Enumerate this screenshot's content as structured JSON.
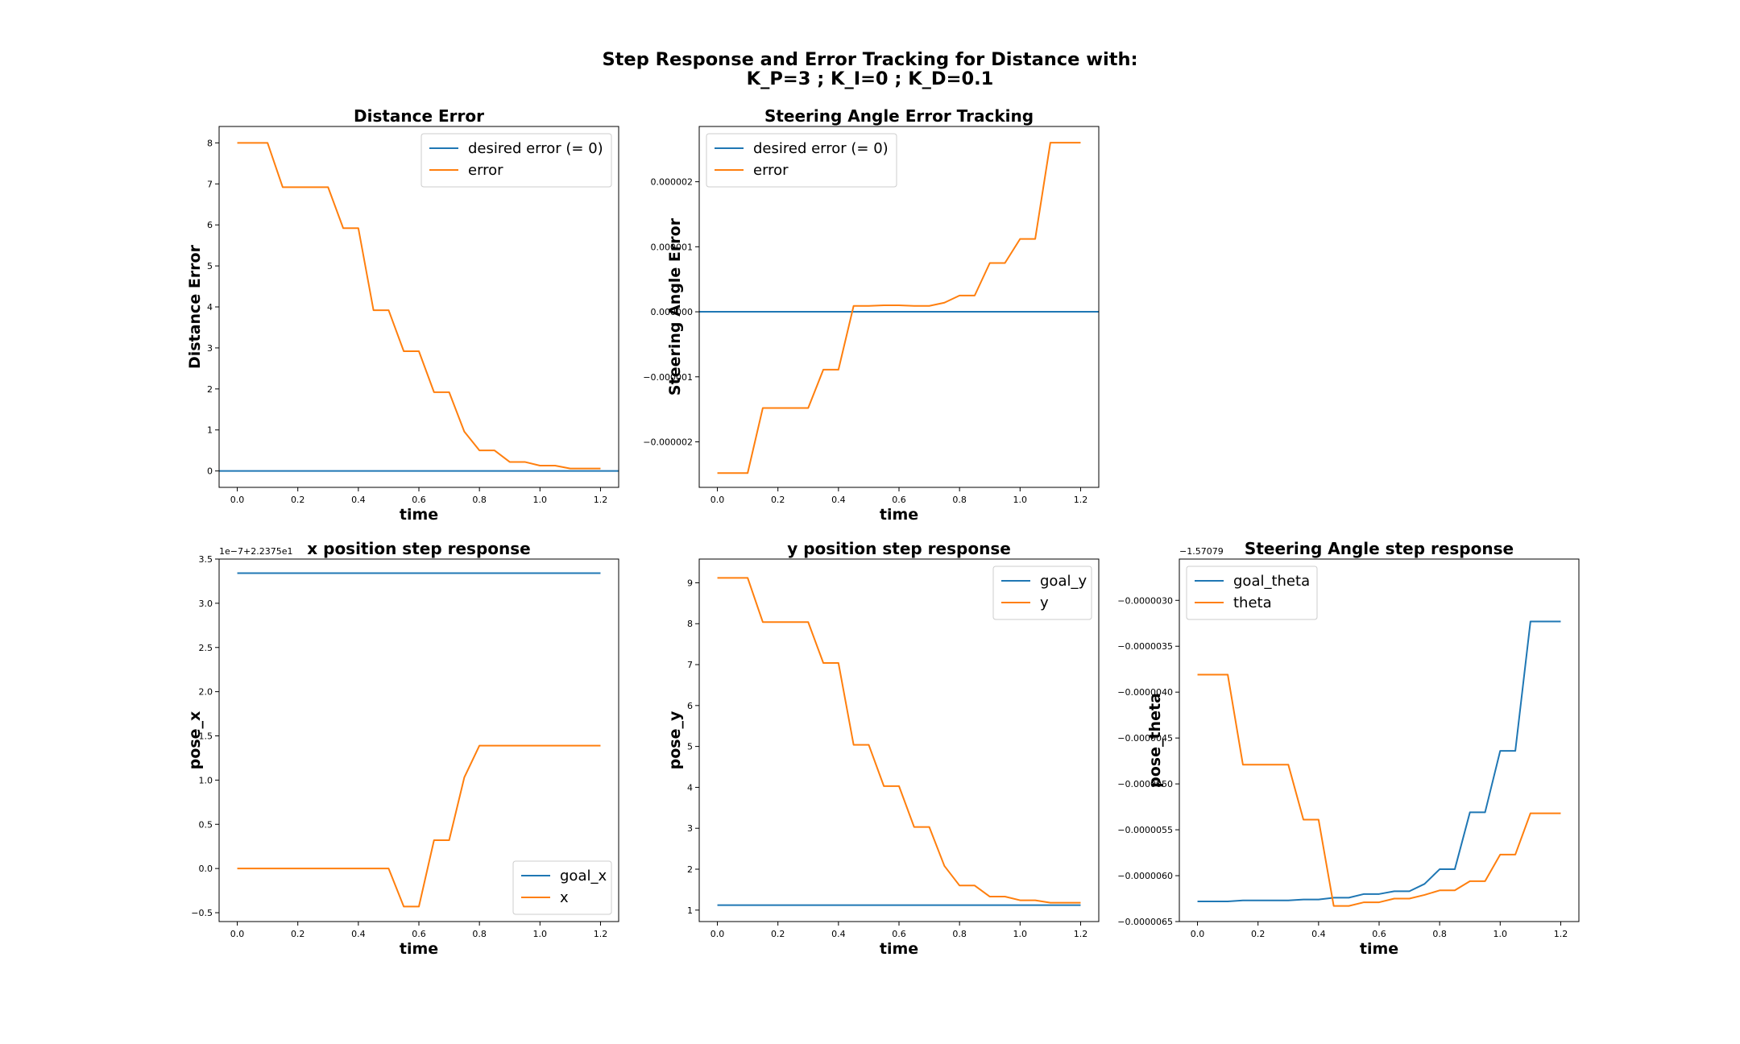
{
  "figure": {
    "suptitle_line1": "Step Response and Error Tracking for Distance with:",
    "suptitle_line2": "K_P=3 ; K_I=0 ; K_D=0.1"
  },
  "colors": {
    "blue": "#1f77b4",
    "orange": "#ff7f0e"
  },
  "chart_data": [
    {
      "id": "distance_error",
      "type": "line",
      "title": "Distance Error",
      "xlabel": "time",
      "ylabel": "Distance Error",
      "xlim": [
        -0.06,
        1.26
      ],
      "ylim": [
        -0.4,
        8.4
      ],
      "xticks": [
        0.0,
        0.2,
        0.4,
        0.6,
        0.8,
        1.0,
        1.2
      ],
      "xtick_labels": [
        "0.0",
        "0.2",
        "0.4",
        "0.6",
        "0.8",
        "1.0",
        "1.2"
      ],
      "yticks": [
        0,
        1,
        2,
        3,
        4,
        5,
        6,
        7,
        8
      ],
      "ytick_labels": [
        "0",
        "1",
        "2",
        "3",
        "4",
        "5",
        "6",
        "7",
        "8"
      ],
      "offset_text": "",
      "legend": "top-right",
      "series": [
        {
          "name": "desired error (= 0)",
          "color": "#1f77b4",
          "x": [
            -0.06,
            1.26
          ],
          "y": [
            0,
            0
          ]
        },
        {
          "name": "error",
          "color": "#ff7f0e",
          "x": [
            0.0,
            0.05,
            0.1,
            0.15,
            0.2,
            0.25,
            0.3,
            0.35,
            0.4,
            0.45,
            0.5,
            0.55,
            0.6,
            0.65,
            0.7,
            0.75,
            0.8,
            0.85,
            0.9,
            0.95,
            1.0,
            1.05,
            1.1,
            1.15,
            1.2
          ],
          "y": [
            8.0,
            8.0,
            8.0,
            6.92,
            6.92,
            6.92,
            6.92,
            5.92,
            5.92,
            3.92,
            3.92,
            2.92,
            2.92,
            1.92,
            1.92,
            0.96,
            0.5,
            0.5,
            0.22,
            0.22,
            0.13,
            0.13,
            0.06,
            0.06,
            0.06
          ]
        }
      ]
    },
    {
      "id": "steering_error",
      "type": "line",
      "title": "Steering Angle Error Tracking",
      "xlabel": "time",
      "ylabel": "Steering Angle Error",
      "xlim": [
        -0.06,
        1.26
      ],
      "ylim": [
        -2.7,
        2.85
      ],
      "xticks": [
        0.0,
        0.2,
        0.4,
        0.6,
        0.8,
        1.0,
        1.2
      ],
      "xtick_labels": [
        "0.0",
        "0.2",
        "0.4",
        "0.6",
        "0.8",
        "1.0",
        "1.2"
      ],
      "yticks": [
        -2,
        -1,
        0,
        1,
        2
      ],
      "ytick_labels": [
        "−0.000002",
        "−0.000001",
        "0.000000",
        "0.000001",
        "0.000002"
      ],
      "offset_text": "",
      "legend": "top-left",
      "series": [
        {
          "name": "desired error (= 0)",
          "color": "#1f77b4",
          "x": [
            -0.06,
            1.26
          ],
          "y": [
            0,
            0
          ]
        },
        {
          "name": "error",
          "color": "#ff7f0e",
          "x": [
            0.0,
            0.05,
            0.1,
            0.15,
            0.2,
            0.25,
            0.3,
            0.35,
            0.4,
            0.45,
            0.5,
            0.55,
            0.6,
            0.65,
            0.7,
            0.75,
            0.8,
            0.85,
            0.9,
            0.95,
            1.0,
            1.05,
            1.1,
            1.15,
            1.2
          ],
          "y": [
            -2.48,
            -2.48,
            -2.48,
            -1.48,
            -1.48,
            -1.48,
            -1.48,
            -0.89,
            -0.89,
            0.09,
            0.09,
            0.1,
            0.1,
            0.09,
            0.09,
            0.14,
            0.25,
            0.25,
            0.75,
            0.75,
            1.12,
            1.12,
            2.6,
            2.6,
            2.6
          ]
        }
      ]
    },
    {
      "id": "x_step",
      "type": "line",
      "title": "x position step response",
      "xlabel": "time",
      "ylabel": "pose_x",
      "xlim": [
        -0.06,
        1.26
      ],
      "ylim": [
        -0.6,
        3.5
      ],
      "xticks": [
        0.0,
        0.2,
        0.4,
        0.6,
        0.8,
        1.0,
        1.2
      ],
      "xtick_labels": [
        "0.0",
        "0.2",
        "0.4",
        "0.6",
        "0.8",
        "1.0",
        "1.2"
      ],
      "yticks": [
        -0.5,
        0.0,
        0.5,
        1.0,
        1.5,
        2.0,
        2.5,
        3.0,
        3.5
      ],
      "ytick_labels": [
        "−0.5",
        "0.0",
        "0.5",
        "1.0",
        "1.5",
        "2.0",
        "2.5",
        "3.0",
        "3.5"
      ],
      "offset_text": "1e−7+2.2375e1",
      "legend": "bottom-right",
      "series": [
        {
          "name": "goal_x",
          "color": "#1f77b4",
          "x": [
            0.0,
            1.2
          ],
          "y": [
            3.34,
            3.34
          ]
        },
        {
          "name": "x",
          "color": "#ff7f0e",
          "x": [
            0.0,
            0.05,
            0.1,
            0.15,
            0.2,
            0.25,
            0.3,
            0.35,
            0.4,
            0.45,
            0.5,
            0.55,
            0.6,
            0.65,
            0.7,
            0.75,
            0.8,
            0.85,
            0.9,
            0.95,
            1.0,
            1.05,
            1.1,
            1.15,
            1.2
          ],
          "y": [
            0.0,
            0.0,
            0.0,
            0.0,
            0.0,
            0.0,
            0.0,
            0.0,
            0.0,
            0.0,
            0.0,
            -0.43,
            -0.43,
            0.32,
            0.32,
            1.03,
            1.39,
            1.39,
            1.39,
            1.39,
            1.39,
            1.39,
            1.39,
            1.39,
            1.39
          ]
        }
      ]
    },
    {
      "id": "y_step",
      "type": "line",
      "title": "y position step response",
      "xlabel": "time",
      "ylabel": "pose_y",
      "xlim": [
        -0.06,
        1.26
      ],
      "ylim": [
        0.72,
        9.58
      ],
      "xticks": [
        0.0,
        0.2,
        0.4,
        0.6,
        0.8,
        1.0,
        1.2
      ],
      "xtick_labels": [
        "0.0",
        "0.2",
        "0.4",
        "0.6",
        "0.8",
        "1.0",
        "1.2"
      ],
      "yticks": [
        1,
        2,
        3,
        4,
        5,
        6,
        7,
        8,
        9
      ],
      "ytick_labels": [
        "1",
        "2",
        "3",
        "4",
        "5",
        "6",
        "7",
        "8",
        "9"
      ],
      "offset_text": "",
      "legend": "top-right",
      "series": [
        {
          "name": "goal_y",
          "color": "#1f77b4",
          "x": [
            0.0,
            1.2
          ],
          "y": [
            1.12,
            1.12
          ]
        },
        {
          "name": "y",
          "color": "#ff7f0e",
          "x": [
            0.0,
            0.05,
            0.1,
            0.15,
            0.2,
            0.25,
            0.3,
            0.35,
            0.4,
            0.45,
            0.5,
            0.55,
            0.6,
            0.65,
            0.7,
            0.75,
            0.8,
            0.85,
            0.9,
            0.95,
            1.0,
            1.05,
            1.1,
            1.15,
            1.2
          ],
          "y": [
            9.12,
            9.12,
            9.12,
            8.04,
            8.04,
            8.04,
            8.04,
            7.04,
            7.04,
            5.04,
            5.04,
            4.03,
            4.03,
            3.03,
            3.03,
            2.08,
            1.6,
            1.6,
            1.33,
            1.33,
            1.24,
            1.24,
            1.18,
            1.18,
            1.18
          ]
        }
      ]
    },
    {
      "id": "theta_step",
      "type": "line",
      "title": "Steering Angle step response",
      "xlabel": "time",
      "ylabel": "pose_theta",
      "xlim": [
        -0.06,
        1.26
      ],
      "ylim": [
        -6.5,
        -2.55
      ],
      "xticks": [
        0.0,
        0.2,
        0.4,
        0.6,
        0.8,
        1.0,
        1.2
      ],
      "xtick_labels": [
        "0.0",
        "0.2",
        "0.4",
        "0.6",
        "0.8",
        "1.0",
        "1.2"
      ],
      "yticks": [
        -6.5,
        -6.0,
        -5.5,
        -5.0,
        -4.5,
        -4.0,
        -3.5,
        -3.0
      ],
      "ytick_labels": [
        "−0.0000065",
        "−0.0000060",
        "−0.0000055",
        "−0.0000050",
        "−0.0000045",
        "−0.0000040",
        "−0.0000035",
        "−0.0000030"
      ],
      "offset_text": "−1.57079",
      "legend": "top-left",
      "series": [
        {
          "name": "goal_theta",
          "color": "#1f77b4",
          "x": [
            0.0,
            0.05,
            0.1,
            0.15,
            0.2,
            0.25,
            0.3,
            0.35,
            0.4,
            0.45,
            0.5,
            0.55,
            0.6,
            0.65,
            0.7,
            0.75,
            0.8,
            0.85,
            0.9,
            0.95,
            1.0,
            1.05,
            1.1,
            1.15,
            1.2
          ],
          "y": [
            -6.28,
            -6.28,
            -6.28,
            -6.27,
            -6.27,
            -6.27,
            -6.27,
            -6.26,
            -6.26,
            -6.24,
            -6.24,
            -6.2,
            -6.2,
            -6.17,
            -6.17,
            -6.09,
            -5.93,
            -5.93,
            -5.31,
            -5.31,
            -4.64,
            -4.64,
            -3.23,
            -3.23,
            -3.23
          ]
        },
        {
          "name": "theta",
          "color": "#ff7f0e",
          "x": [
            0.0,
            0.05,
            0.1,
            0.15,
            0.2,
            0.25,
            0.3,
            0.35,
            0.4,
            0.45,
            0.5,
            0.55,
            0.6,
            0.65,
            0.7,
            0.75,
            0.8,
            0.85,
            0.9,
            0.95,
            1.0,
            1.05,
            1.1,
            1.15,
            1.2
          ],
          "y": [
            -3.81,
            -3.81,
            -3.81,
            -4.79,
            -4.79,
            -4.79,
            -4.79,
            -5.39,
            -5.39,
            -6.33,
            -6.33,
            -6.29,
            -6.29,
            -6.25,
            -6.25,
            -6.21,
            -6.16,
            -6.16,
            -6.06,
            -6.06,
            -5.77,
            -5.77,
            -5.32,
            -5.32,
            -5.32
          ]
        }
      ]
    }
  ]
}
